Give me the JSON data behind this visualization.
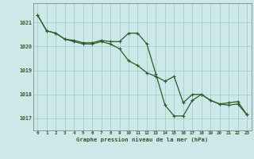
{
  "hours": [
    0,
    1,
    2,
    3,
    4,
    5,
    6,
    7,
    8,
    9,
    10,
    11,
    12,
    13,
    14,
    15,
    16,
    17,
    18,
    19,
    20,
    21,
    22,
    23
  ],
  "pressure_actual": [
    1021.3,
    1020.65,
    1020.55,
    1020.3,
    1020.25,
    1020.15,
    1020.15,
    1020.25,
    1020.2,
    1020.2,
    1020.55,
    1020.55,
    1020.1,
    1018.85,
    1017.55,
    1017.1,
    1017.1,
    1017.75,
    1018.0,
    1017.75,
    1017.6,
    1017.65,
    1017.7,
    1017.15
  ],
  "pressure_trend": [
    1021.3,
    1020.65,
    1020.55,
    1020.3,
    1020.2,
    1020.1,
    1020.1,
    1020.2,
    1020.1,
    1019.9,
    1019.4,
    1019.2,
    1018.9,
    1018.75,
    1018.55,
    1018.75,
    1017.65,
    1018.0,
    1018.0,
    1017.75,
    1017.6,
    1017.55,
    1017.6,
    1017.15
  ],
  "line_color": "#2d5a27",
  "bg_color": "#cce8e8",
  "grid_color": "#a0c8c8",
  "text_color": "#2d5a27",
  "ylabel_values": [
    1017,
    1018,
    1019,
    1020,
    1021
  ],
  "xlabel_label": "Graphe pression niveau de la mer (hPa)",
  "ylim": [
    1016.5,
    1021.8
  ],
  "xlim": [
    -0.5,
    23.5
  ]
}
